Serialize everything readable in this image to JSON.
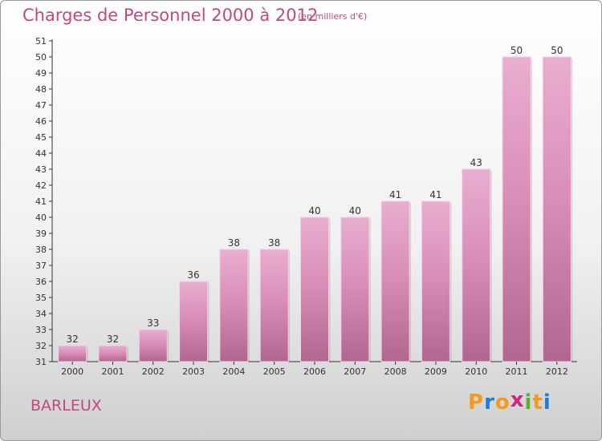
{
  "chart_data": {
    "type": "bar",
    "title": "Charges de Personnel 2000 à 2012",
    "subtitle": "(en milliers d'€)",
    "categories": [
      "2000",
      "2001",
      "2002",
      "2003",
      "2004",
      "2005",
      "2006",
      "2007",
      "2008",
      "2009",
      "2010",
      "2011",
      "2012"
    ],
    "values": [
      32,
      32,
      33,
      36,
      38,
      38,
      40,
      40,
      41,
      41,
      43,
      50,
      50
    ],
    "ylim": [
      31,
      51
    ],
    "yticks": [
      31,
      32,
      33,
      34,
      35,
      36,
      37,
      38,
      39,
      40,
      41,
      42,
      43,
      44,
      45,
      46,
      47,
      48,
      49,
      50,
      51
    ],
    "grid": false,
    "bar_color": "#d98fb8",
    "bar_color_top": "#e8aed0",
    "bar_color_bottom": "#b0668f"
  },
  "footer": {
    "commune": "BARLEUX",
    "logo_letters": [
      "P",
      "r",
      "o",
      "x",
      "i",
      "t",
      "i"
    ],
    "logo_colors": [
      "#f39a1f",
      "#1a7fd4",
      "#f39a1f",
      "#d0257a",
      "#5ab031",
      "#f39a1f",
      "#1a7fd4"
    ]
  }
}
